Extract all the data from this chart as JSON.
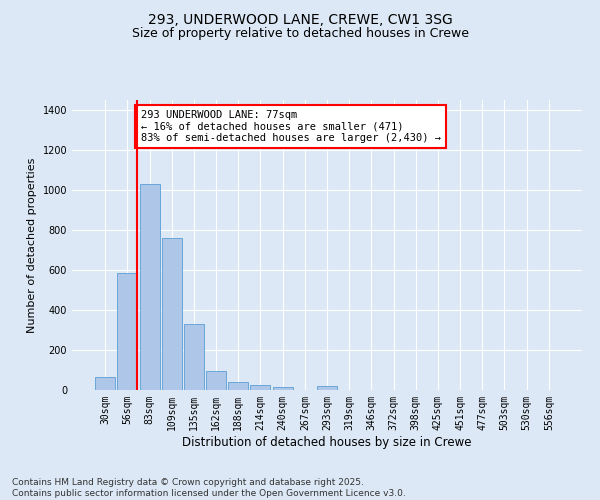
{
  "title1": "293, UNDERWOOD LANE, CREWE, CW1 3SG",
  "title2": "Size of property relative to detached houses in Crewe",
  "xlabel": "Distribution of detached houses by size in Crewe",
  "ylabel": "Number of detached properties",
  "bar_labels": [
    "30sqm",
    "56sqm",
    "83sqm",
    "109sqm",
    "135sqm",
    "162sqm",
    "188sqm",
    "214sqm",
    "240sqm",
    "267sqm",
    "293sqm",
    "319sqm",
    "346sqm",
    "372sqm",
    "398sqm",
    "425sqm",
    "451sqm",
    "477sqm",
    "503sqm",
    "530sqm",
    "556sqm"
  ],
  "bar_values": [
    65,
    585,
    1030,
    760,
    330,
    97,
    38,
    25,
    15,
    0,
    20,
    0,
    0,
    0,
    0,
    0,
    0,
    0,
    0,
    0,
    0
  ],
  "bar_color": "#aec6e8",
  "bar_edge_color": "#5a9fd4",
  "vline_color": "red",
  "annotation_text": "293 UNDERWOOD LANE: 77sqm\n← 16% of detached houses are smaller (471)\n83% of semi-detached houses are larger (2,430) →",
  "annotation_box_color": "white",
  "annotation_box_edge": "red",
  "ylim": [
    0,
    1450
  ],
  "bg_color": "#dce8f5",
  "grid_color": "white",
  "footnote": "Contains HM Land Registry data © Crown copyright and database right 2025.\nContains public sector information licensed under the Open Government Licence v3.0.",
  "title_fontsize": 10,
  "subtitle_fontsize": 9,
  "annotation_fontsize": 7.5,
  "footnote_fontsize": 6.5,
  "ylabel_fontsize": 8,
  "xlabel_fontsize": 8.5
}
